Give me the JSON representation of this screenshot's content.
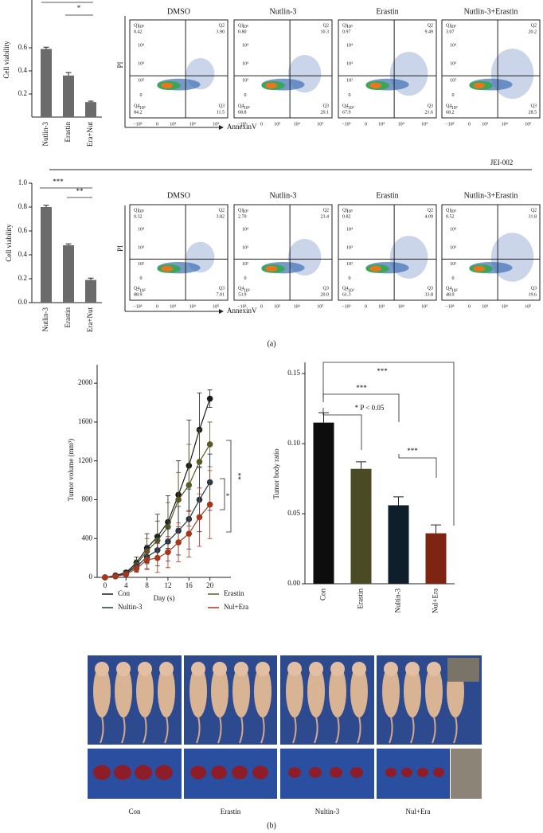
{
  "chart_data": [
    {
      "type": "bar",
      "y_label": "Cell viability",
      "categories": [
        "Nutlin-3",
        "Erastin",
        "Era+Nut"
      ],
      "values": [
        0.59,
        0.36,
        0.13
      ],
      "errors": [
        0.015,
        0.025,
        0.008
      ],
      "color": "#6b6b6b",
      "ylim": [
        0,
        1.0
      ],
      "yticks": [
        0.2,
        0.4,
        0.6
      ],
      "annotations": [
        "*"
      ]
    },
    {
      "type": "bar",
      "y_label": "Cell viability",
      "categories": [
        "Nutlin-3",
        "Erastin",
        "Era+Nut"
      ],
      "values": [
        0.8,
        0.48,
        0.19
      ],
      "errors": [
        0.015,
        0.012,
        0.015
      ],
      "color": "#6b6b6b",
      "ylim": [
        0,
        1.0
      ],
      "yticks": [
        {
          "value": 0,
          "label": "0.0"
        },
        0.2,
        0.4,
        0.6,
        0.8,
        {
          "value": 1,
          "label": "1.0"
        }
      ],
      "annotations": [
        "***",
        "**"
      ]
    },
    {
      "type": "line",
      "y_label": "Tumor volume (mm³)",
      "x_label": "Day (s)",
      "x": [
        0,
        2,
        4,
        6,
        8,
        10,
        12,
        14,
        16,
        18,
        20
      ],
      "xlim": [
        -1.5,
        24
      ],
      "xticks": [
        0,
        4,
        8,
        12,
        16,
        20
      ],
      "ylim": [
        0,
        2190
      ],
      "yticks": [
        0,
        400,
        800,
        1200,
        1600,
        2000
      ],
      "annotations": [
        "*",
        "**"
      ],
      "series": [
        {
          "name": "Con",
          "color": "#1a1a1a",
          "values": [
            0,
            20,
            50,
            150,
            300,
            420,
            570,
            850,
            1150,
            1520,
            1840
          ],
          "errors": [
            0,
            10,
            20,
            60,
            150,
            230,
            270,
            350,
            470,
            380,
            90
          ]
        },
        {
          "name": "Erastin",
          "color": "#5b5a2a",
          "values": [
            0,
            15,
            40,
            130,
            270,
            380,
            520,
            800,
            950,
            1190,
            1370
          ],
          "errors": [
            0,
            8,
            20,
            50,
            130,
            200,
            250,
            280,
            420,
            330,
            230
          ]
        },
        {
          "name": "Nultin-3",
          "color": "#1d3a4a",
          "values": [
            0,
            15,
            40,
            110,
            210,
            280,
            370,
            480,
            600,
            800,
            980
          ],
          "errors": [
            0,
            8,
            20,
            50,
            120,
            160,
            200,
            250,
            310,
            330,
            290
          ]
        },
        {
          "name": "Nul+Era",
          "color": "#a8361c",
          "values": [
            0,
            10,
            30,
            90,
            180,
            200,
            260,
            360,
            450,
            620,
            750
          ],
          "errors": [
            0,
            8,
            15,
            40,
            100,
            150,
            160,
            200,
            240,
            300,
            350
          ]
        }
      ]
    },
    {
      "type": "bar",
      "y_label": "Tumor body ratio",
      "categories": [
        "Con",
        "Erastin",
        "Nultin-3",
        "Nul+Era"
      ],
      "values": [
        0.115,
        0.082,
        0.056,
        0.036
      ],
      "errors": [
        0.007,
        0.005,
        0.006,
        0.006
      ],
      "colors": [
        "#0d0d0d",
        "#4a4a24",
        "#0e1e2a",
        "#7e2410"
      ],
      "ylim": [
        0,
        0.158
      ],
      "yticks": [
        {
          "value": 0,
          "label": "0.00"
        },
        0.05,
        {
          "value": 0.1,
          "label": "0.10"
        },
        0.15
      ],
      "annotations": [
        "***",
        "***",
        "* P < 0.05",
        "***"
      ]
    }
  ],
  "flow_axis": {
    "quadrant_names": [
      "Q1",
      "Q2",
      "Q3",
      "Q4"
    ],
    "y_ticks": [
      "10⁵",
      "10⁴",
      "10³",
      "10²",
      "0",
      "−10²"
    ],
    "x_ticks": [
      "−10³",
      "0",
      "10³",
      "10⁴",
      "10⁵"
    ]
  },
  "flow_rows": [
    {
      "y_label": "PI",
      "x_label": "AnnexinV",
      "panels": [
        {
          "title": "DMSO",
          "values": [
            "0.42",
            "3.90",
            "11.5",
            "84.2"
          ]
        },
        {
          "title": "Nutlin-3",
          "values": [
            "0.80",
            "10.3",
            "20.1",
            "68.8"
          ]
        },
        {
          "title": "Erastin",
          "values": [
            "0.97",
            "9.49",
            "21.6",
            "67.9"
          ]
        },
        {
          "title": "Nutlin-3+Erastin",
          "values": [
            "3.07",
            "20.2",
            "28.5",
            "68.2"
          ]
        }
      ]
    },
    {
      "y_label": "PI",
      "x_label": "AnnexinV",
      "cell_line": "JEI-002",
      "panels": [
        {
          "title": "DMSO",
          "values": [
            "0.32",
            "3.82",
            "7.01",
            "88.9"
          ]
        },
        {
          "title": "Nutlin-3",
          "values": [
            "2.70",
            "23.4",
            "20.0",
            "53.9"
          ]
        },
        {
          "title": "Erastin",
          "values": [
            "0.82",
            "4.09",
            "33.8",
            "61.3"
          ]
        },
        {
          "title": "Nutlin-3+Erastin",
          "values": [
            "0.52",
            "31.8",
            "19.6",
            "48.0"
          ]
        }
      ]
    }
  ],
  "mouse_photos": {
    "labels": [
      "Con",
      "Erastin",
      "Nultin-3",
      "Nul+Era"
    ]
  },
  "panel_labels": [
    "(a)",
    "(b)"
  ]
}
